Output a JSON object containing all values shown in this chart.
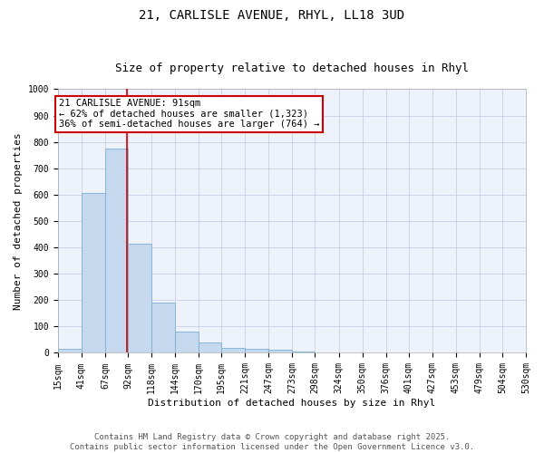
{
  "title": "21, CARLISLE AVENUE, RHYL, LL18 3UD",
  "subtitle": "Size of property relative to detached houses in Rhyl",
  "xlabel": "Distribution of detached houses by size in Rhyl",
  "ylabel": "Number of detached properties",
  "bar_color": "#c5d8ed",
  "bar_edge_color": "#7aafd4",
  "bg_color": "#eef2fa",
  "grid_color": "#c8d0e8",
  "bin_edges": [
    15,
    41,
    67,
    92,
    118,
    144,
    170,
    195,
    221,
    247,
    273,
    298,
    324,
    350,
    376,
    401,
    427,
    453,
    479,
    504,
    530
  ],
  "bar_heights": [
    15,
    608,
    775,
    415,
    192,
    80,
    38,
    20,
    15,
    13,
    5,
    0,
    0,
    0,
    0,
    0,
    0,
    0,
    0,
    0
  ],
  "tick_labels": [
    "15sqm",
    "41sqm",
    "67sqm",
    "92sqm",
    "118sqm",
    "144sqm",
    "170sqm",
    "195sqm",
    "221sqm",
    "247sqm",
    "273sqm",
    "298sqm",
    "324sqm",
    "350sqm",
    "376sqm",
    "401sqm",
    "427sqm",
    "453sqm",
    "479sqm",
    "504sqm",
    "530sqm"
  ],
  "property_size": 91,
  "vline_color": "#cc0000",
  "annotation_line1": "21 CARLISLE AVENUE: 91sqm",
  "annotation_line2": "← 62% of detached houses are smaller (1,323)",
  "annotation_line3": "36% of semi-detached houses are larger (764) →",
  "annotation_box_color": "#cc0000",
  "ylim": [
    0,
    1000
  ],
  "yticks": [
    0,
    100,
    200,
    300,
    400,
    500,
    600,
    700,
    800,
    900,
    1000
  ],
  "footer_line1": "Contains HM Land Registry data © Crown copyright and database right 2025.",
  "footer_line2": "Contains public sector information licensed under the Open Government Licence v3.0.",
  "title_fontsize": 10,
  "subtitle_fontsize": 9,
  "axis_label_fontsize": 8,
  "tick_fontsize": 7,
  "annotation_fontsize": 7.5,
  "footer_fontsize": 6.5,
  "ylabel_fontsize": 8
}
